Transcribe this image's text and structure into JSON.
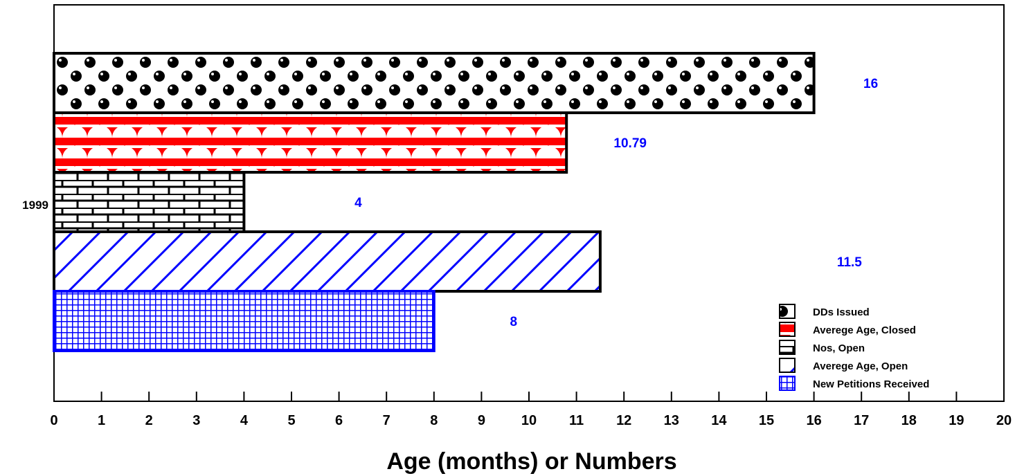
{
  "chart_data": {
    "type": "bar",
    "orientation": "horizontal",
    "categories": [
      "1999"
    ],
    "series": [
      {
        "name": "DDs Issued",
        "values": [
          16
        ],
        "pattern": "dots",
        "color": "#000000"
      },
      {
        "name": "Averege Age, Closed",
        "values": [
          10.79
        ],
        "pattern": "scales",
        "color": "#ff0000"
      },
      {
        "name": "Nos, Open",
        "values": [
          4
        ],
        "pattern": "bricks",
        "color": "#000000"
      },
      {
        "name": "Averege Age, Open",
        "values": [
          11.5
        ],
        "pattern": "diagonal",
        "color": "#0000ff"
      },
      {
        "name": "New Petitions Received",
        "values": [
          8
        ],
        "pattern": "grid",
        "color": "#0000ff"
      }
    ],
    "data_labels": [
      "16",
      "10.79",
      "4",
      "11.5",
      "8"
    ],
    "xlabel": "Age (months) or Numbers",
    "xlim": [
      0,
      20
    ],
    "x_ticks": [
      "0",
      "1",
      "2",
      "3",
      "4",
      "5",
      "6",
      "7",
      "8",
      "9",
      "10",
      "11",
      "12",
      "13",
      "14",
      "15",
      "16",
      "17",
      "18",
      "19",
      "20"
    ],
    "grid": false,
    "legend_position": "bottom-right",
    "label_color": "#0000ff"
  }
}
